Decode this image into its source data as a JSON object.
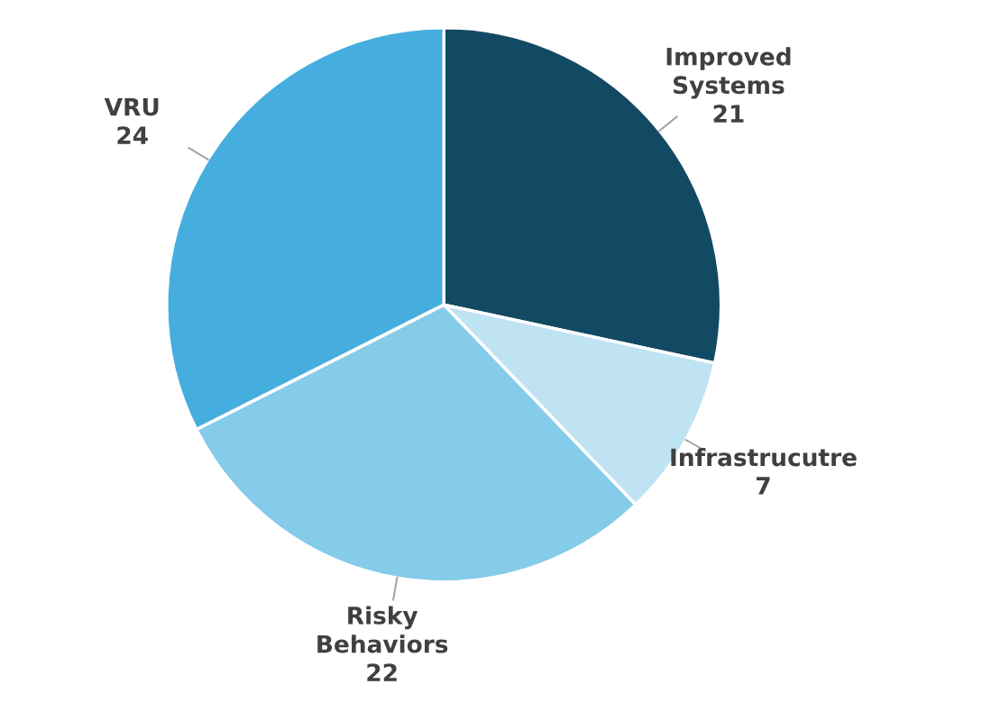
{
  "chart_data": {
    "type": "pie",
    "categories": [
      "Improved Systems",
      "Infrastrucutre",
      "Risky Behaviors",
      "VRU"
    ],
    "values": [
      21,
      7,
      22,
      24
    ],
    "colors": [
      "#134a63",
      "#c0e3f4",
      "#85cbea",
      "#45aedf"
    ],
    "data_labels": true,
    "legend": false
  }
}
